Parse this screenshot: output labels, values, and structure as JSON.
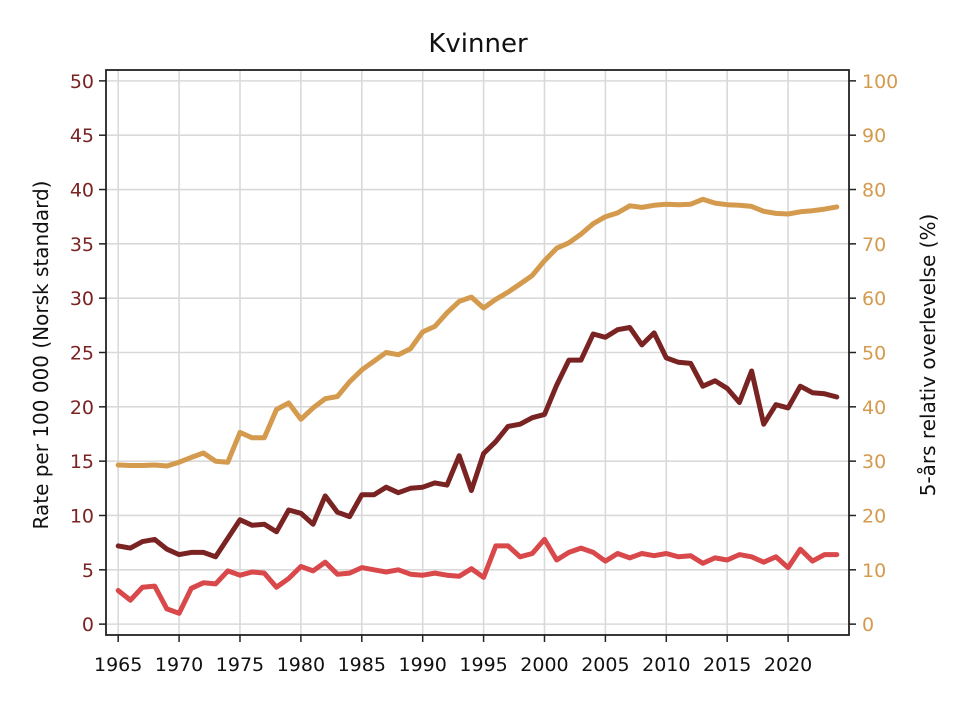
{
  "chart_data": {
    "type": "line",
    "title": "Kvinner",
    "ylabel_left": "Rate per 100 000 (Norsk standard)",
    "ylabel_right": "5-års relativ overlevelse (%)",
    "xlabel": "",
    "xlim": [
      1964,
      2025
    ],
    "ylim_left": [
      -1,
      51
    ],
    "ylim_right": [
      -2,
      102
    ],
    "xticks": [
      1965,
      1970,
      1975,
      1980,
      1985,
      1990,
      1995,
      2000,
      2005,
      2010,
      2015,
      2020
    ],
    "yticks_left": [
      0,
      5,
      10,
      15,
      20,
      25,
      30,
      35,
      40,
      45,
      50
    ],
    "yticks_right": [
      0,
      10,
      20,
      30,
      40,
      50,
      60,
      70,
      80,
      90,
      100
    ],
    "grid": true,
    "colors": {
      "left_axis": "#7a2323",
      "right_axis": "#d49a4e",
      "grid": "#d9d9d9"
    },
    "x": [
      1965,
      1966,
      1967,
      1968,
      1969,
      1970,
      1971,
      1972,
      1973,
      1974,
      1975,
      1976,
      1977,
      1978,
      1979,
      1980,
      1981,
      1982,
      1983,
      1984,
      1985,
      1986,
      1987,
      1988,
      1989,
      1990,
      1991,
      1992,
      1993,
      1994,
      1995,
      1996,
      1997,
      1998,
      1999,
      2000,
      2001,
      2002,
      2003,
      2004,
      2005,
      2006,
      2007,
      2008,
      2009,
      2010,
      2011,
      2012,
      2013,
      2014,
      2015,
      2016,
      2017,
      2018,
      2019,
      2020,
      2021,
      2022,
      2023,
      2024
    ],
    "series": [
      {
        "axis": "right",
        "color": "#d49a4e",
        "values": [
          29.3,
          29.2,
          29.2,
          29.3,
          29.1,
          29.8,
          30.7,
          31.5,
          30.0,
          29.8,
          35.3,
          34.3,
          34.3,
          39.5,
          40.7,
          37.7,
          39.8,
          41.5,
          41.9,
          44.6,
          46.8,
          48.4,
          50.0,
          49.6,
          50.7,
          53.8,
          54.8,
          57.3,
          59.4,
          60.2,
          58.2,
          59.8,
          61.1,
          62.6,
          64.2,
          66.9,
          69.2,
          70.2,
          71.8,
          73.7,
          75.0,
          75.7,
          77.0,
          76.7,
          77.1,
          77.3,
          77.2,
          77.3,
          78.2,
          77.5,
          77.2,
          77.1,
          76.9,
          76.0,
          75.6,
          75.5,
          75.9,
          76.1,
          76.4,
          76.8
        ]
      },
      {
        "axis": "left",
        "color": "#7a2323",
        "values": [
          7.2,
          7.0,
          7.6,
          7.8,
          6.9,
          6.4,
          6.6,
          6.6,
          6.2,
          7.9,
          9.6,
          9.1,
          9.2,
          8.5,
          10.5,
          10.2,
          9.2,
          11.8,
          10.3,
          9.9,
          11.9,
          11.9,
          12.6,
          12.1,
          12.5,
          12.6,
          13.0,
          12.8,
          15.5,
          12.3,
          15.7,
          16.8,
          18.2,
          18.4,
          19.0,
          19.3,
          22.0,
          24.3,
          24.3,
          26.7,
          26.4,
          27.1,
          27.3,
          25.7,
          26.8,
          24.5,
          24.1,
          24.0,
          21.9,
          22.4,
          21.7,
          20.4,
          23.3,
          18.4,
          20.2,
          19.9,
          21.9,
          21.3,
          21.2,
          20.9
        ]
      },
      {
        "axis": "left",
        "color": "#d9484a",
        "values": [
          3.1,
          2.2,
          3.4,
          3.5,
          1.4,
          1.0,
          3.3,
          3.8,
          3.7,
          4.9,
          4.5,
          4.8,
          4.7,
          3.4,
          4.2,
          5.3,
          4.9,
          5.7,
          4.6,
          4.7,
          5.2,
          5.0,
          4.8,
          5.0,
          4.6,
          4.5,
          4.7,
          4.5,
          4.4,
          5.1,
          4.3,
          7.2,
          7.2,
          6.2,
          6.5,
          7.8,
          5.9,
          6.6,
          7.0,
          6.6,
          5.8,
          6.5,
          6.1,
          6.5,
          6.3,
          6.5,
          6.2,
          6.3,
          5.6,
          6.1,
          5.9,
          6.4,
          6.2,
          5.7,
          6.2,
          5.2,
          6.9,
          5.8,
          6.4,
          6.4
        ]
      }
    ]
  }
}
